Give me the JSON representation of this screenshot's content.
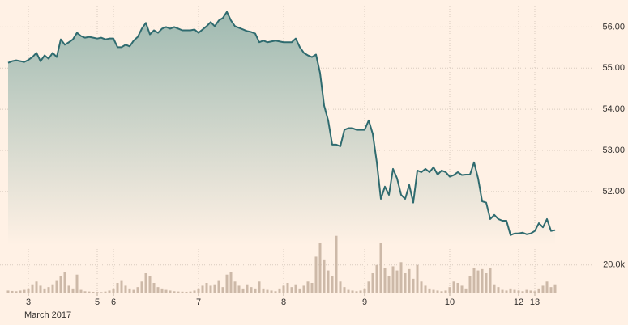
{
  "chart_data": {
    "type": "line",
    "x_label": "March 2017",
    "grid": true,
    "categories": [
      null,
      null,
      null,
      null,
      null,
      "3",
      null,
      null,
      null,
      null,
      null,
      null,
      null,
      null,
      null,
      null,
      null,
      null,
      null,
      null,
      null,
      null,
      "5",
      null,
      null,
      null,
      "6",
      null,
      null,
      null,
      null,
      null,
      null,
      null,
      null,
      null,
      null,
      null,
      null,
      null,
      null,
      null,
      null,
      null,
      null,
      null,
      null,
      "7",
      null,
      null,
      null,
      null,
      null,
      null,
      null,
      null,
      null,
      null,
      null,
      null,
      null,
      null,
      null,
      null,
      null,
      null,
      null,
      null,
      "8",
      null,
      null,
      null,
      null,
      null,
      null,
      null,
      null,
      null,
      null,
      null,
      null,
      null,
      null,
      null,
      null,
      null,
      null,
      null,
      "9",
      null,
      null,
      null,
      null,
      null,
      null,
      null,
      null,
      null,
      null,
      null,
      null,
      null,
      null,
      null,
      null,
      null,
      null,
      null,
      null,
      "10",
      null,
      null,
      null,
      null,
      null,
      null,
      null,
      null,
      null,
      null,
      null,
      null,
      null,
      null,
      null,
      null,
      "12",
      null,
      null,
      null,
      "13",
      null,
      null,
      null,
      null,
      null
    ],
    "ylim": [
      50.7,
      56.5
    ],
    "yticks": [
      {
        "value": 52,
        "label": "52.00"
      },
      {
        "value": 53,
        "label": "53.00"
      },
      {
        "value": 54,
        "label": "54.00"
      },
      {
        "value": 55,
        "label": "55.00"
      },
      {
        "value": 56,
        "label": "56.00"
      }
    ],
    "y2lim": [
      0,
      42000
    ],
    "y2ticks": [
      {
        "value": 20000,
        "label": "20.0k"
      }
    ],
    "series": [
      {
        "color": "#2f6b6f",
        "values": [
          55.13,
          55.17,
          55.19,
          55.17,
          55.15,
          55.2,
          55.27,
          55.37,
          55.17,
          55.31,
          55.23,
          55.37,
          55.27,
          55.7,
          55.57,
          55.63,
          55.7,
          55.86,
          55.78,
          55.74,
          55.76,
          55.74,
          55.72,
          55.74,
          55.7,
          55.72,
          55.72,
          55.51,
          55.51,
          55.57,
          55.53,
          55.67,
          55.76,
          55.96,
          56.1,
          55.82,
          55.92,
          55.86,
          55.96,
          56.0,
          55.96,
          56.0,
          55.96,
          55.92,
          55.92,
          55.92,
          55.94,
          55.86,
          55.94,
          56.02,
          56.12,
          56.02,
          56.16,
          56.22,
          56.37,
          56.16,
          56.02,
          55.98,
          55.94,
          55.9,
          55.88,
          55.84,
          55.63,
          55.67,
          55.63,
          55.65,
          55.67,
          55.65,
          55.63,
          55.63,
          55.63,
          55.72,
          55.51,
          55.37,
          55.31,
          55.27,
          55.33,
          54.88,
          54.09,
          53.73,
          53.14,
          53.14,
          53.1,
          53.5,
          53.54,
          53.54,
          53.5,
          53.5,
          53.5,
          53.73,
          53.4,
          52.71,
          51.82,
          52.12,
          51.92,
          52.55,
          52.32,
          51.92,
          51.82,
          52.16,
          51.73,
          52.51,
          52.47,
          52.55,
          52.47,
          52.59,
          52.41,
          52.51,
          52.47,
          52.36,
          52.4,
          52.47,
          52.4,
          52.41,
          52.41,
          52.71,
          52.32,
          51.76,
          51.73,
          51.33,
          51.43,
          51.33,
          51.29,
          51.29,
          50.94,
          50.98,
          50.98,
          51.0,
          50.96,
          50.98,
          51.04,
          51.23,
          51.13,
          51.33,
          51.04,
          51.06
        ]
      },
      {
        "type": "bar",
        "axis": "y2",
        "color": "#cdb9a8",
        "values": [
          1500,
          1200,
          1000,
          1500,
          2000,
          3000,
          6000,
          8000,
          5000,
          3000,
          4000,
          6000,
          9000,
          12000,
          15000,
          5000,
          3000,
          13000,
          2000,
          1000,
          800,
          600,
          500,
          400,
          800,
          1500,
          3000,
          7000,
          9000,
          5000,
          3000,
          2000,
          4000,
          8000,
          14000,
          12000,
          7000,
          4000,
          3000,
          2000,
          1500,
          1000,
          800,
          700,
          600,
          800,
          1500,
          3000,
          5000,
          7000,
          5000,
          6000,
          9000,
          4000,
          13000,
          15000,
          8000,
          5000,
          3000,
          6000,
          4000,
          3000,
          8000,
          3000,
          2000,
          1500,
          1000,
          3000,
          5000,
          7000,
          4000,
          6000,
          3000,
          5000,
          8000,
          7000,
          26000,
          36000,
          24000,
          16000,
          12000,
          41000,
          8000,
          4000,
          2000,
          1500,
          1000,
          1500,
          3000,
          8000,
          14000,
          20000,
          36000,
          18000,
          12000,
          19000,
          16000,
          22000,
          14000,
          17000,
          10000,
          20000,
          8000,
          5000,
          3000,
          2000,
          1500,
          1000,
          1500,
          4000,
          8000,
          7000,
          5000,
          3000,
          12000,
          18000,
          16000,
          17000,
          14000,
          18000,
          6000,
          4000,
          2000,
          1500,
          3000,
          2000,
          1500,
          1000,
          2000,
          1500,
          1000,
          3000,
          5000,
          8000,
          4000,
          6000
        ]
      }
    ]
  }
}
